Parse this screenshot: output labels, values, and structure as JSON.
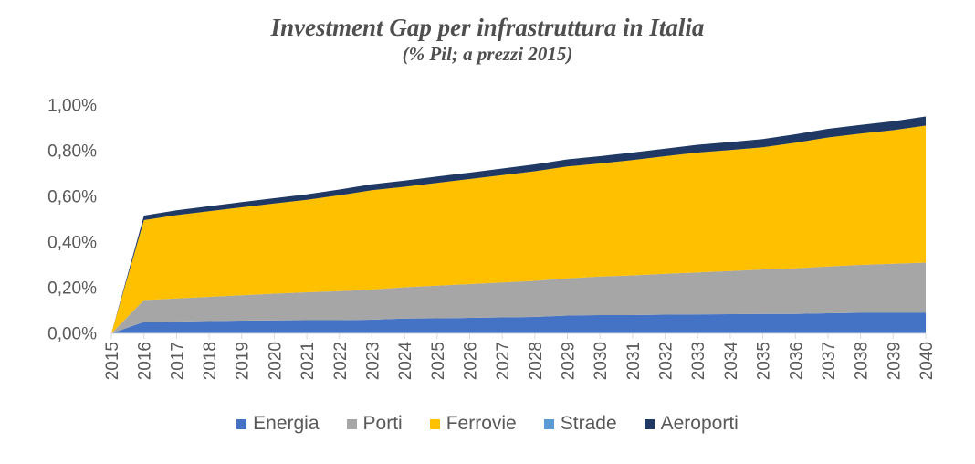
{
  "chart_data": {
    "type": "area",
    "stacked": true,
    "title": "Investment Gap per infrastruttura in Italia",
    "subtitle": "(% Pil; a prezzi 2015)",
    "categories": [
      "2015",
      "2016",
      "2017",
      "2018",
      "2019",
      "2020",
      "2021",
      "2022",
      "2023",
      "2024",
      "2025",
      "2026",
      "2027",
      "2028",
      "2029",
      "2030",
      "2031",
      "2032",
      "2033",
      "2034",
      "2035",
      "2036",
      "2037",
      "2038",
      "2039",
      "2040"
    ],
    "series": [
      {
        "name": "Energia",
        "color": "#4472C4",
        "values": [
          0,
          0.05,
          0.052,
          0.054,
          0.056,
          0.057,
          0.058,
          0.058,
          0.06,
          0.065,
          0.066,
          0.068,
          0.07,
          0.072,
          0.078,
          0.08,
          0.08,
          0.082,
          0.083,
          0.084,
          0.085,
          0.085,
          0.088,
          0.09,
          0.09,
          0.09
        ]
      },
      {
        "name": "Porti",
        "color": "#A6A6A6",
        "values": [
          0,
          0.096,
          0.101,
          0.106,
          0.111,
          0.117,
          0.122,
          0.127,
          0.132,
          0.137,
          0.143,
          0.148,
          0.153,
          0.158,
          0.163,
          0.169,
          0.174,
          0.179,
          0.184,
          0.189,
          0.195,
          0.2,
          0.205,
          0.21,
          0.215,
          0.22
        ]
      },
      {
        "name": "Ferrovie",
        "color": "#FFC000",
        "values": [
          0,
          0.35,
          0.365,
          0.375,
          0.385,
          0.395,
          0.405,
          0.42,
          0.435,
          0.44,
          0.45,
          0.46,
          0.47,
          0.48,
          0.49,
          0.495,
          0.505,
          0.515,
          0.525,
          0.53,
          0.535,
          0.55,
          0.565,
          0.575,
          0.585,
          0.6
        ]
      },
      {
        "name": "Strade",
        "color": "#5B9BD5",
        "values": [
          0,
          0,
          0,
          0,
          0,
          0,
          0,
          0,
          0,
          0,
          0,
          0,
          0,
          0,
          0,
          0,
          0,
          0,
          0,
          0,
          0,
          0,
          0,
          0,
          0,
          0
        ]
      },
      {
        "name": "Aeroporti",
        "color": "#1F3864",
        "values": [
          0,
          0.02,
          0.021,
          0.022,
          0.023,
          0.023,
          0.024,
          0.025,
          0.026,
          0.027,
          0.028,
          0.028,
          0.029,
          0.03,
          0.031,
          0.032,
          0.033,
          0.033,
          0.034,
          0.035,
          0.036,
          0.037,
          0.038,
          0.038,
          0.039,
          0.04
        ]
      }
    ],
    "ylabel": "",
    "xlabel": "",
    "ylim": [
      0,
      1.0
    ],
    "yticks": [
      "0,00%",
      "0,20%",
      "0,40%",
      "0,60%",
      "0,80%",
      "1,00%"
    ],
    "ytick_values": [
      0,
      0.2,
      0.4,
      0.6,
      0.8,
      1.0
    ],
    "grid": false,
    "legend_position": "bottom",
    "colors": {
      "axis_text": "#595959",
      "tick_line": "#D9D9D9",
      "title_text": "#4f4f4f"
    }
  }
}
